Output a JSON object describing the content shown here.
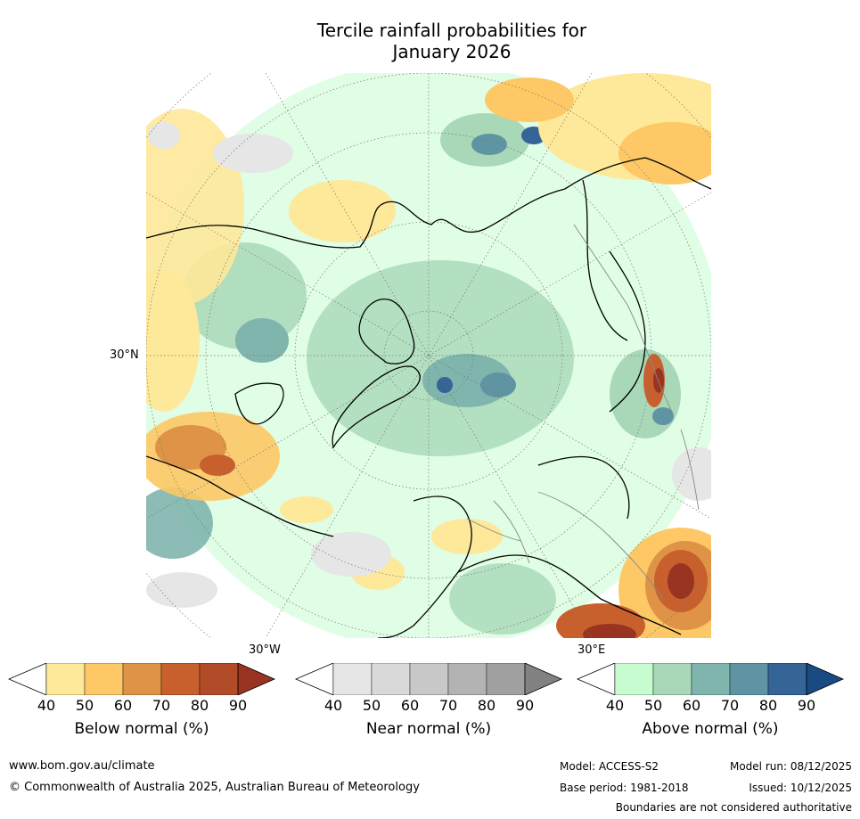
{
  "title": {
    "line1": "Tercile rainfall probabilities for",
    "line2": "January 2026"
  },
  "map": {
    "lat_label": "30°N",
    "lon_label_left": "30°W",
    "lon_label_right": "30°E"
  },
  "colorbars": [
    {
      "label": "Below normal (%)",
      "ticks": [
        "40",
        "50",
        "60",
        "70",
        "80",
        "90"
      ],
      "colors": [
        "#ffffff",
        "#fee899",
        "#fdc865",
        "#df9347",
        "#c8602e",
        "#b24b28",
        "#993322"
      ]
    },
    {
      "label": "Near normal (%)",
      "ticks": [
        "40",
        "50",
        "60",
        "70",
        "80",
        "90"
      ],
      "colors": [
        "#ffffff",
        "#e6e6e6",
        "#d9d9d9",
        "#c8c8c8",
        "#b3b3b3",
        "#a0a0a0",
        "#828282"
      ]
    },
    {
      "label": "Above normal (%)",
      "ticks": [
        "40",
        "50",
        "60",
        "70",
        "80",
        "90"
      ],
      "colors": [
        "#ffffff",
        "#c7fcd0",
        "#a8d8b8",
        "#7fb5ad",
        "#5f94a3",
        "#356496",
        "#1a4a82"
      ]
    }
  ],
  "footer": {
    "website": "www.bom.gov.au/climate",
    "copyright": "© Commonwealth of Australia 2025, Australian Bureau of Meteorology",
    "model": "Model: ACCESS-S2",
    "base_period": "Base period: 1981-2018",
    "model_run": "Model run: 08/12/2025",
    "issued": "Issued: 10/12/2025",
    "boundaries_note": "Boundaries are not considered authoritative"
  }
}
